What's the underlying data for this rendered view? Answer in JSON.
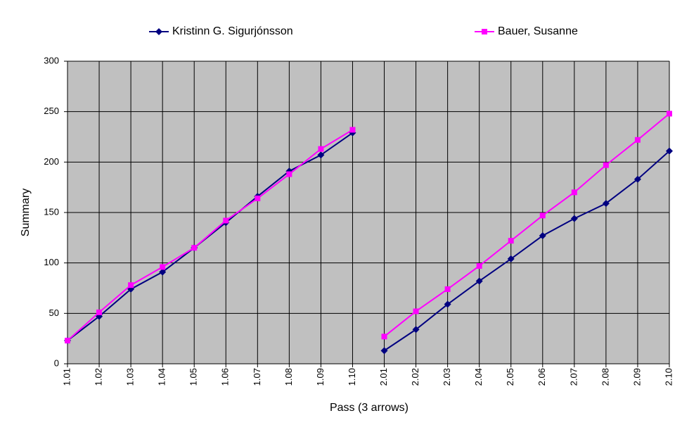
{
  "chart_data": {
    "type": "line",
    "x_label": "Pass (3 arrows)",
    "y_label": "Summary",
    "categories": [
      "1.01",
      "1.02",
      "1.03",
      "1.04",
      "1.05",
      "1.06",
      "1.07",
      "1.08",
      "1.09",
      "1.10",
      "2.01",
      "2.02",
      "2.03",
      "2.04",
      "2.05",
      "2.06",
      "2.07",
      "2.08",
      "2.09",
      "2.10"
    ],
    "series": [
      {
        "name": "Kristinn G. Sigurjónsson",
        "color": "#000080",
        "marker": "diamond",
        "values": [
          23,
          47,
          74,
          91,
          115,
          140,
          166,
          191,
          207,
          229,
          13,
          34,
          59,
          82,
          104,
          127,
          144,
          159,
          183,
          211
        ]
      },
      {
        "name": "Bauer, Susanne",
        "color": "#ff00ff",
        "marker": "square",
        "values": [
          23,
          51,
          78,
          96,
          115,
          142,
          164,
          188,
          213,
          232,
          27,
          52,
          74,
          97,
          122,
          147,
          170,
          197,
          222,
          248
        ]
      }
    ],
    "ylim": [
      0,
      300
    ],
    "yticks": [
      0,
      50,
      100,
      150,
      200,
      250,
      300
    ],
    "grid": true,
    "legend": "top",
    "plot_background": "#c0c0c0"
  }
}
